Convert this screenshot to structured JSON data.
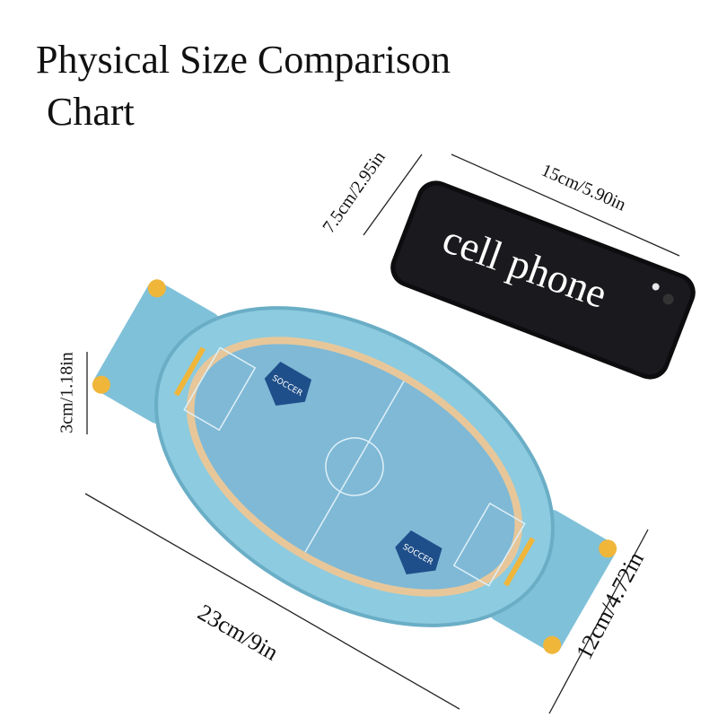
{
  "title": {
    "line1": "Physical Size Comparison",
    "line2": "Chart"
  },
  "phone": {
    "label": "cell phone",
    "color": "#0d0d0f"
  },
  "dimensions": {
    "phone_width": "7.5cm/2.95in",
    "phone_length": "15cm/5.90in",
    "toy_height": "3cm/1.18in",
    "toy_length": "23cm/9in",
    "toy_width": "12cm/4.72in"
  },
  "toy": {
    "logo_text": "SOCCER",
    "body_color": "#8ccbe0",
    "field_color": "#7fb9d6",
    "accent_color": "#f0b63a"
  }
}
